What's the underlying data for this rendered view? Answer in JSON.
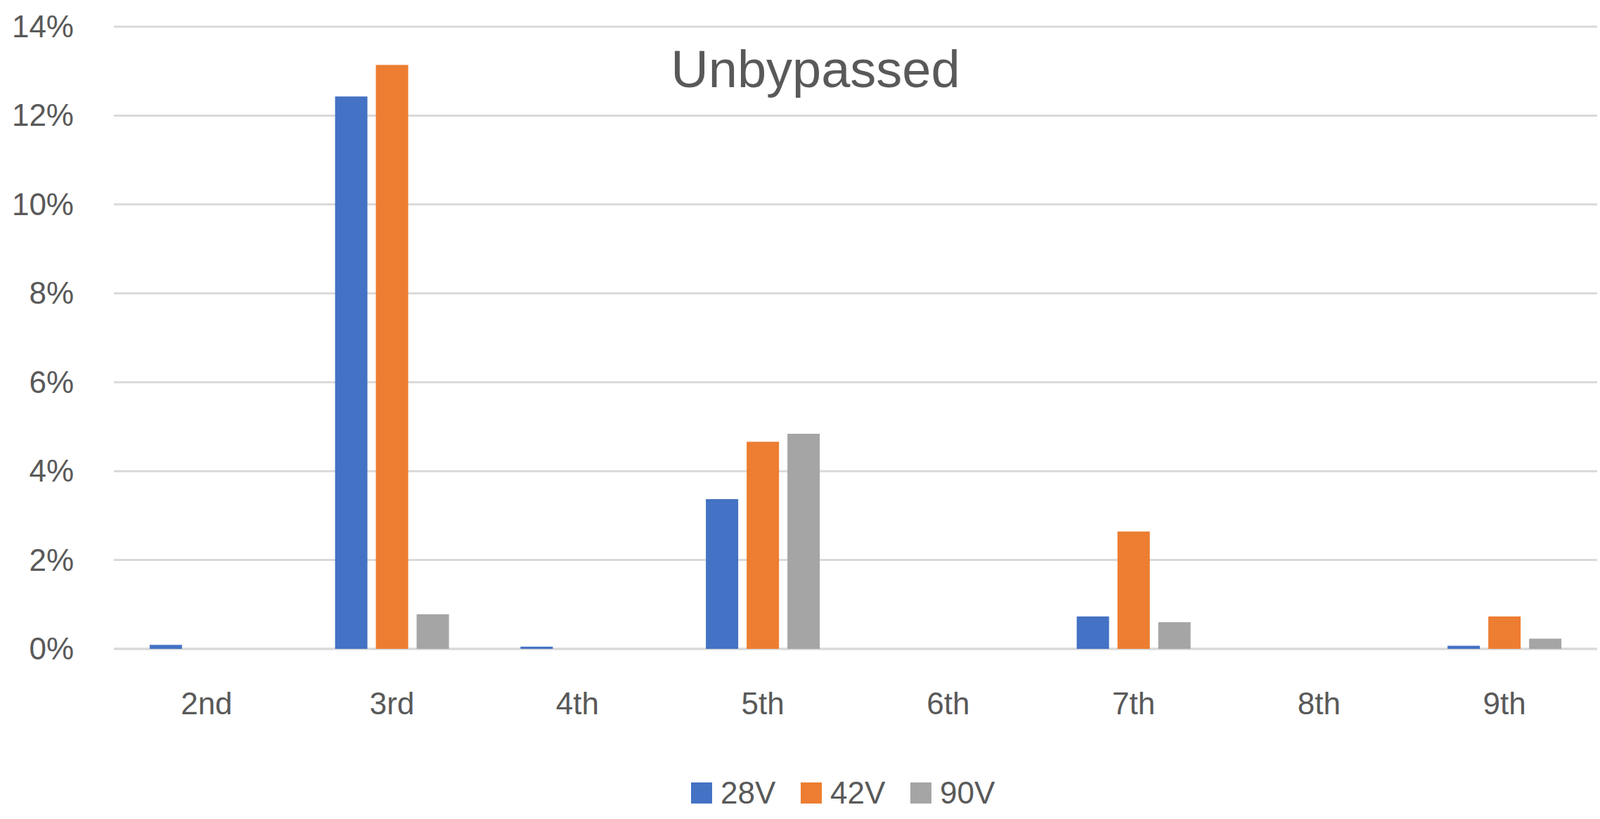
{
  "chart_data": {
    "type": "bar",
    "title": "Unbypassed",
    "categories": [
      "2nd",
      "3rd",
      "4th",
      "5th",
      "6th",
      "7th",
      "8th",
      "9th"
    ],
    "series": [
      {
        "name": "28V",
        "color": "#4472c4",
        "values": [
          0.09,
          12.43,
          0.05,
          3.37,
          0,
          0.73,
          0,
          0.07
        ]
      },
      {
        "name": "42V",
        "color": "#ed7d31",
        "values": [
          0,
          13.14,
          0,
          4.66,
          0,
          2.64,
          0,
          0.73
        ]
      },
      {
        "name": "90V",
        "color": "#a5a5a5",
        "values": [
          0,
          0.78,
          0,
          4.84,
          0,
          0.6,
          0,
          0.23
        ]
      }
    ],
    "ylim": [
      0,
      14
    ],
    "yticks": [
      {
        "value": 0,
        "label": "0%"
      },
      {
        "value": 2,
        "label": "2%"
      },
      {
        "value": 4,
        "label": "4%"
      },
      {
        "value": 6,
        "label": "6%"
      },
      {
        "value": 8,
        "label": "8%"
      },
      {
        "value": 10,
        "label": "10%"
      },
      {
        "value": 12,
        "label": "12%"
      },
      {
        "value": 14,
        "label": "14%"
      }
    ],
    "grid": true,
    "legend": "bottom"
  }
}
